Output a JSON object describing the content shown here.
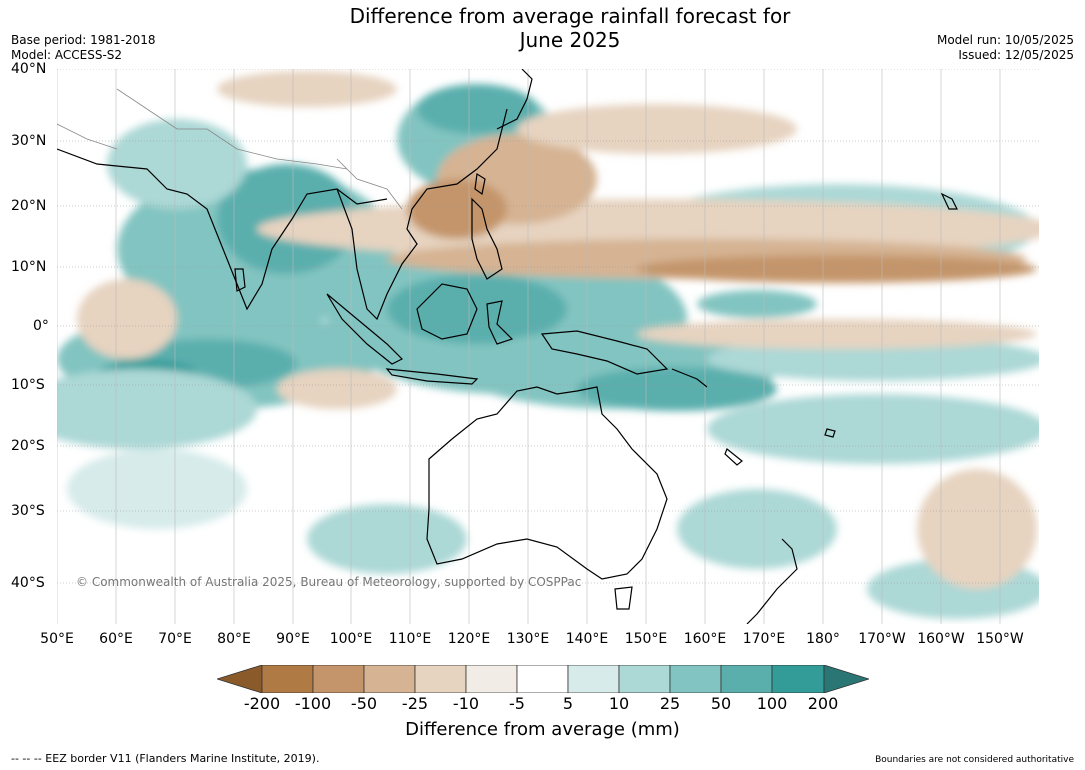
{
  "title": {
    "line1": "Difference from average rainfall forecast for",
    "line2": "June 2025"
  },
  "meta": {
    "base_period": "Base period: 1981-2018",
    "model": "Model: ACCESS-S2",
    "model_run": "Model run: 10/05/2025",
    "issued": "Issued: 12/05/2025"
  },
  "axes": {
    "lat_labels": [
      "40°N",
      "30°N",
      "20°N",
      "10°N",
      "0°",
      "10°S",
      "20°S",
      "30°S",
      "40°S"
    ],
    "lon_labels": [
      "50°E",
      "60°E",
      "70°E",
      "80°E",
      "90°E",
      "100°E",
      "110°E",
      "120°E",
      "130°E",
      "140°E",
      "150°E",
      "160°E",
      "170°E",
      "180°",
      "170°W",
      "160°W",
      "150°W"
    ]
  },
  "copyright": "© Commonwealth of Australia 2025, Bureau of Meteorology, supported by COSPPac",
  "colorbar": {
    "labels": [
      "-200",
      "-100",
      "-50",
      "-25",
      "-10",
      "-5",
      "5",
      "10",
      "25",
      "50",
      "100",
      "200"
    ],
    "colors": [
      "#8a5a2b",
      "#b07a45",
      "#c4956a",
      "#d5b393",
      "#e6d3c0",
      "#f2ece6",
      "#ffffff",
      "#d6ebea",
      "#acd8d6",
      "#82c4c1",
      "#5aafad",
      "#339c99",
      "#2a7674"
    ],
    "title": "Difference from average (mm)"
  },
  "footer": {
    "eez": "--  --  -- EEZ border V11 (Flanders Marine Institute, 2019).",
    "boundaries": "Boundaries are not considered authoritative"
  }
}
